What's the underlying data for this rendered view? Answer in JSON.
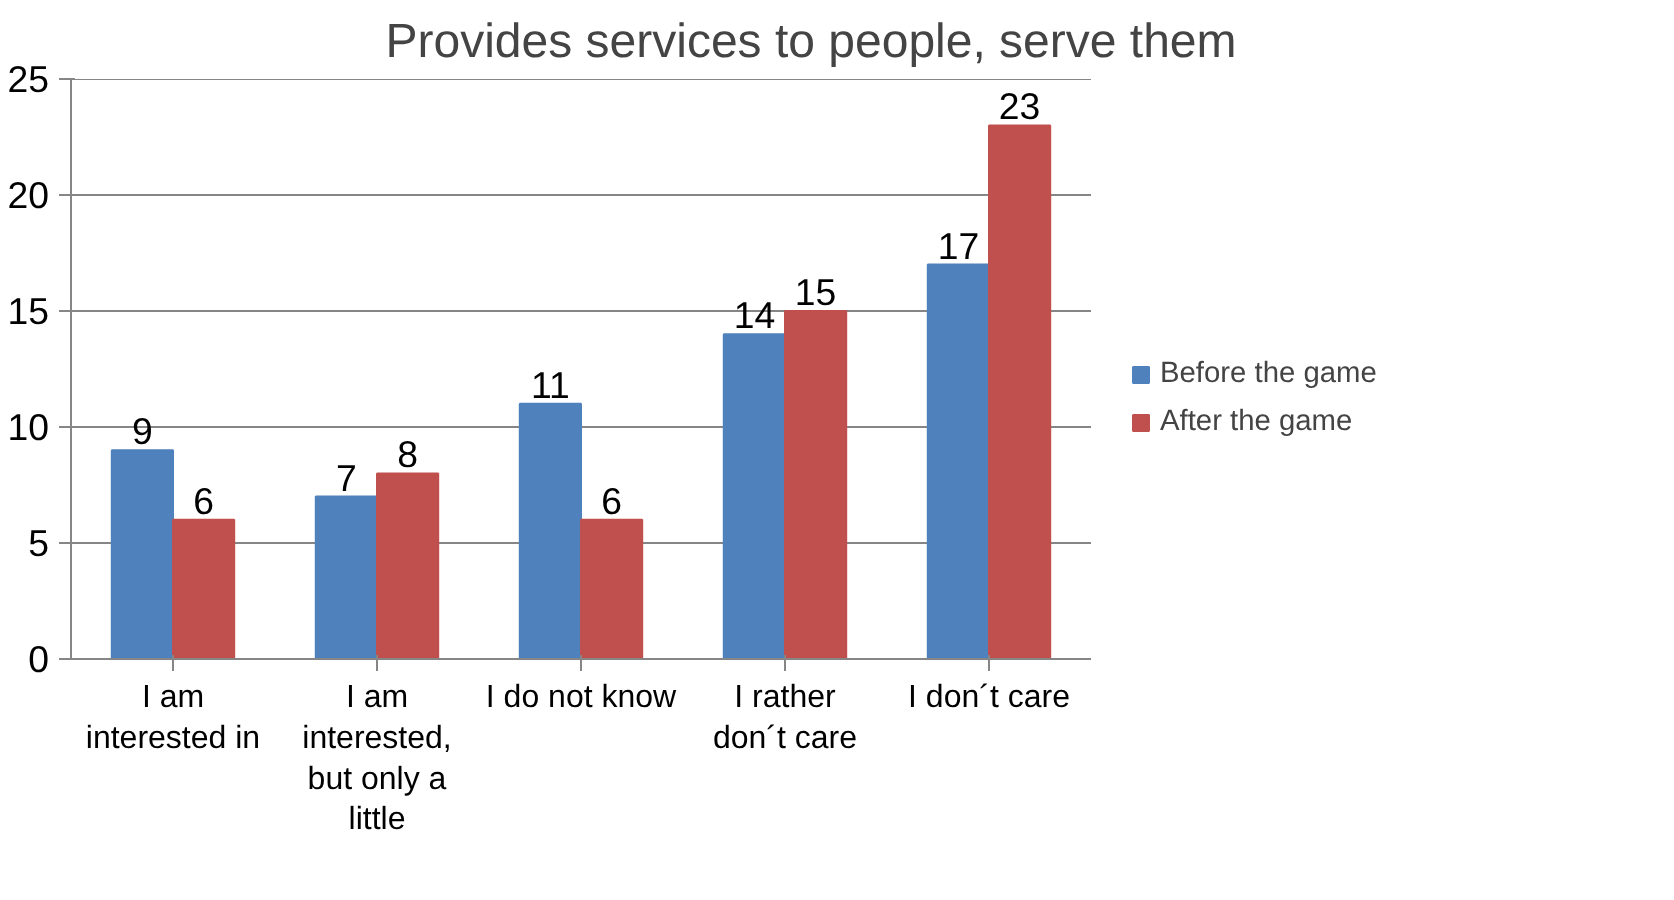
{
  "chart_data": {
    "type": "bar",
    "title": "Provides services to people, serve them",
    "categories": [
      "I am interested in",
      "I am interested, but only a little",
      "I do not know",
      "I rather don´t care",
      "I don´t care"
    ],
    "series": [
      {
        "name": "Before the game",
        "color": "#4f81bd",
        "values": [
          9,
          7,
          11,
          14,
          17
        ]
      },
      {
        "name": "After the game",
        "color": "#c0504d",
        "values": [
          6,
          8,
          6,
          15,
          23
        ]
      }
    ],
    "ylim": [
      0,
      25
    ],
    "yticks": [
      0,
      5,
      10,
      15,
      20,
      25
    ],
    "grid": "y",
    "legend": "right",
    "data_labels": true
  }
}
